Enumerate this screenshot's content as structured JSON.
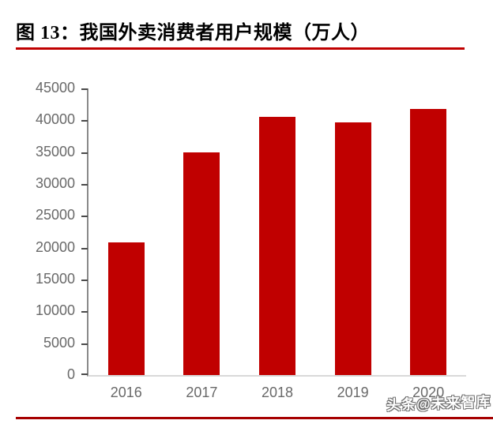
{
  "figure": {
    "title": "图 13：我国外卖消费者用户规模（万人）"
  },
  "chart_data": {
    "type": "bar",
    "figure_label": "图 13",
    "title": "我国外卖消费者用户规模（万人）",
    "unit": "万人",
    "categories": [
      "2016",
      "2017",
      "2018",
      "2019",
      "2020"
    ],
    "values": [
      20800,
      34900,
      40500,
      39700,
      41800
    ],
    "xlabel": "",
    "ylabel": "",
    "ylim": [
      0,
      45000
    ],
    "ytick_step": 5000,
    "ytick_labels": [
      "0",
      "5000",
      "10000",
      "15000",
      "20000",
      "25000",
      "30000",
      "35000",
      "40000",
      "45000"
    ],
    "grid": false,
    "legend_position": "none",
    "bar_color": "#c00000"
  },
  "watermark": {
    "text": "头条@未来智库"
  },
  "colors": {
    "bar": "#c00000",
    "title_text": "#000000",
    "title_rule": "#c00000",
    "bottom_rule": "#a60000",
    "axis_line": "#8a8a8a",
    "axis_baseline": "#d9d9d9",
    "tick": "#4a4a4a",
    "tick_label": "#696969",
    "watermark_fill": "#ffffff",
    "watermark_outline": "#6f6f6f"
  }
}
